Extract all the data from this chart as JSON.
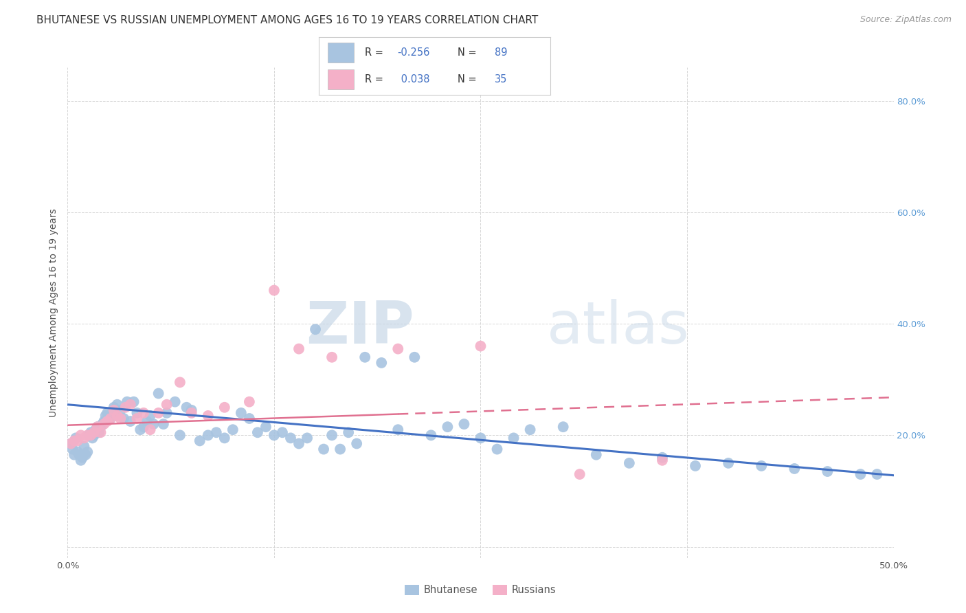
{
  "title": "BHUTANESE VS RUSSIAN UNEMPLOYMENT AMONG AGES 16 TO 19 YEARS CORRELATION CHART",
  "source_text": "Source: ZipAtlas.com",
  "ylabel": "Unemployment Among Ages 16 to 19 years",
  "xlim": [
    0,
    0.5
  ],
  "ylim": [
    -0.02,
    0.86
  ],
  "xticks": [
    0.0,
    0.125,
    0.25,
    0.375,
    0.5
  ],
  "xtick_labels": [
    "0.0%",
    "",
    "",
    "",
    "50.0%"
  ],
  "yticks": [
    0.0,
    0.2,
    0.4,
    0.6,
    0.8
  ],
  "ytick_labels_right": [
    "",
    "20.0%",
    "40.0%",
    "60.0%",
    "80.0%"
  ],
  "blue_color": "#a8c4e0",
  "pink_color": "#f4b0c8",
  "blue_line_color": "#4472c4",
  "pink_line_color": "#e07090",
  "legend_label1": "Bhutanese",
  "legend_label2": "Russians",
  "R1_text": "-0.256",
  "N1_text": "89",
  "R2_text": "0.038",
  "N2_text": "35",
  "blue_line_y0": 0.255,
  "blue_line_y1": 0.128,
  "pink_line_y0": 0.218,
  "pink_line_y1": 0.268,
  "bhutanese_x": [
    0.002,
    0.003,
    0.004,
    0.005,
    0.006,
    0.007,
    0.008,
    0.009,
    0.01,
    0.011,
    0.012,
    0.013,
    0.014,
    0.015,
    0.016,
    0.017,
    0.018,
    0.019,
    0.02,
    0.021,
    0.022,
    0.023,
    0.024,
    0.025,
    0.026,
    0.027,
    0.028,
    0.029,
    0.03,
    0.032,
    0.034,
    0.036,
    0.038,
    0.04,
    0.042,
    0.044,
    0.046,
    0.048,
    0.05,
    0.052,
    0.055,
    0.058,
    0.06,
    0.065,
    0.068,
    0.072,
    0.075,
    0.08,
    0.085,
    0.09,
    0.095,
    0.1,
    0.105,
    0.11,
    0.115,
    0.12,
    0.125,
    0.13,
    0.135,
    0.14,
    0.145,
    0.15,
    0.155,
    0.16,
    0.165,
    0.17,
    0.175,
    0.18,
    0.19,
    0.2,
    0.21,
    0.22,
    0.23,
    0.24,
    0.25,
    0.26,
    0.27,
    0.28,
    0.3,
    0.32,
    0.34,
    0.36,
    0.38,
    0.4,
    0.42,
    0.44,
    0.46,
    0.48,
    0.49
  ],
  "bhutanese_y": [
    0.185,
    0.175,
    0.165,
    0.195,
    0.17,
    0.165,
    0.155,
    0.16,
    0.18,
    0.165,
    0.17,
    0.2,
    0.205,
    0.195,
    0.2,
    0.21,
    0.215,
    0.205,
    0.215,
    0.22,
    0.225,
    0.235,
    0.24,
    0.23,
    0.23,
    0.24,
    0.25,
    0.235,
    0.255,
    0.245,
    0.23,
    0.26,
    0.225,
    0.26,
    0.24,
    0.21,
    0.215,
    0.225,
    0.235,
    0.22,
    0.275,
    0.22,
    0.24,
    0.26,
    0.2,
    0.25,
    0.245,
    0.19,
    0.2,
    0.205,
    0.195,
    0.21,
    0.24,
    0.23,
    0.205,
    0.215,
    0.2,
    0.205,
    0.195,
    0.185,
    0.195,
    0.39,
    0.175,
    0.2,
    0.175,
    0.205,
    0.185,
    0.34,
    0.33,
    0.21,
    0.34,
    0.2,
    0.215,
    0.22,
    0.195,
    0.175,
    0.195,
    0.21,
    0.215,
    0.165,
    0.15,
    0.16,
    0.145,
    0.15,
    0.145,
    0.14,
    0.135,
    0.13,
    0.13
  ],
  "russian_x": [
    0.002,
    0.004,
    0.006,
    0.008,
    0.01,
    0.012,
    0.014,
    0.016,
    0.018,
    0.02,
    0.022,
    0.024,
    0.026,
    0.028,
    0.03,
    0.032,
    0.035,
    0.038,
    0.042,
    0.046,
    0.05,
    0.055,
    0.06,
    0.068,
    0.075,
    0.085,
    0.095,
    0.11,
    0.125,
    0.14,
    0.16,
    0.2,
    0.25,
    0.31,
    0.36
  ],
  "russian_y": [
    0.185,
    0.19,
    0.19,
    0.2,
    0.195,
    0.2,
    0.2,
    0.205,
    0.215,
    0.205,
    0.22,
    0.225,
    0.23,
    0.245,
    0.235,
    0.23,
    0.25,
    0.255,
    0.23,
    0.24,
    0.21,
    0.24,
    0.255,
    0.295,
    0.24,
    0.235,
    0.25,
    0.26,
    0.46,
    0.355,
    0.34,
    0.355,
    0.36,
    0.13,
    0.155
  ],
  "watermark_zip": "ZIP",
  "watermark_atlas": "atlas",
  "watermark_color": "#ccd9e8",
  "background_color": "#ffffff",
  "grid_color": "#cccccc",
  "title_fontsize": 11,
  "axis_fontsize": 10,
  "tick_fontsize": 9.5
}
